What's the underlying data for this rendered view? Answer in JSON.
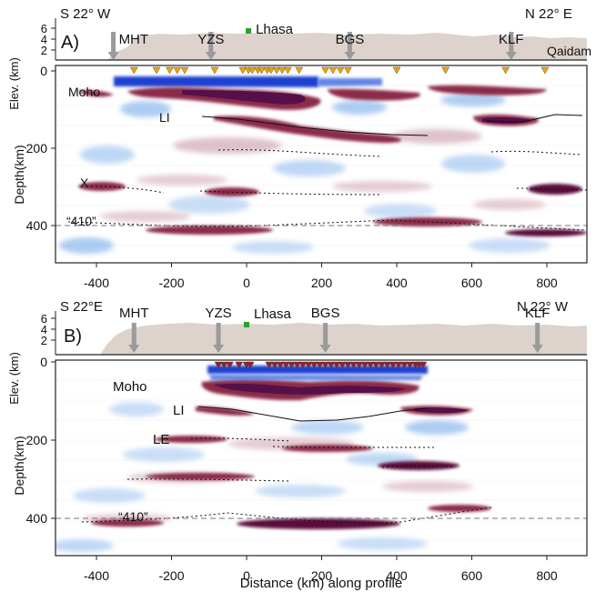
{
  "panels": [
    {
      "id": "A",
      "panel_label": "A)",
      "left_direction": "S 22° W",
      "right_direction": "N 22° E",
      "elev_ticks": [
        "6",
        "4",
        "2"
      ],
      "elev_axis_label": "Elev. (km)",
      "depth_axis_label": "Depth(km)",
      "depth_ticks": [
        "0",
        "200",
        "400"
      ],
      "x_ticks": [
        "-400",
        "-200",
        "0",
        "200",
        "400",
        "600",
        "800"
      ],
      "faults": [
        {
          "label": "MHT",
          "x_km": -355
        },
        {
          "label": "YZS",
          "x_km": -95
        },
        {
          "label": "BGS",
          "x_km": 275
        },
        {
          "label": "KLF",
          "x_km": 705
        }
      ],
      "city": {
        "label": "Lhasa",
        "x_km": 5
      },
      "extra_label": "Qaidam",
      "features": {
        "moho": "Moho",
        "li": "LI",
        "x": "X",
        "d410": "“410”"
      },
      "station_color": "#e8a21a"
    },
    {
      "id": "B",
      "panel_label": "B)",
      "left_direction": "S 22°E",
      "right_direction": "N 22° W",
      "elev_ticks": [
        "6",
        "4",
        "2"
      ],
      "elev_axis_label": "Elev. (km)",
      "depth_axis_label": "Depth(km)",
      "depth_ticks": [
        "0",
        "200",
        "400"
      ],
      "x_ticks": [
        "-400",
        "-200",
        "0",
        "200",
        "400",
        "600",
        "800"
      ],
      "faults": [
        {
          "label": "MHT",
          "x_km": -300
        },
        {
          "label": "YZS",
          "x_km": -75
        },
        {
          "label": "BGS",
          "x_km": 210
        },
        {
          "label": "KLF",
          "x_km": 775
        }
      ],
      "city": {
        "label": "Lhasa",
        "x_km": 0
      },
      "features": {
        "moho": "Moho",
        "li": "LI",
        "le": "LE",
        "d410": "“410”"
      },
      "station_color": "#8a2436"
    }
  ],
  "x_axis_label": "Distance (km) along profile",
  "colors": {
    "positive_dark": "#5a0d3a",
    "positive": "#8c2a4a",
    "negative": "#2a6fd6",
    "topography": "#ddd2cc",
    "city_marker": "#2aa02a"
  }
}
